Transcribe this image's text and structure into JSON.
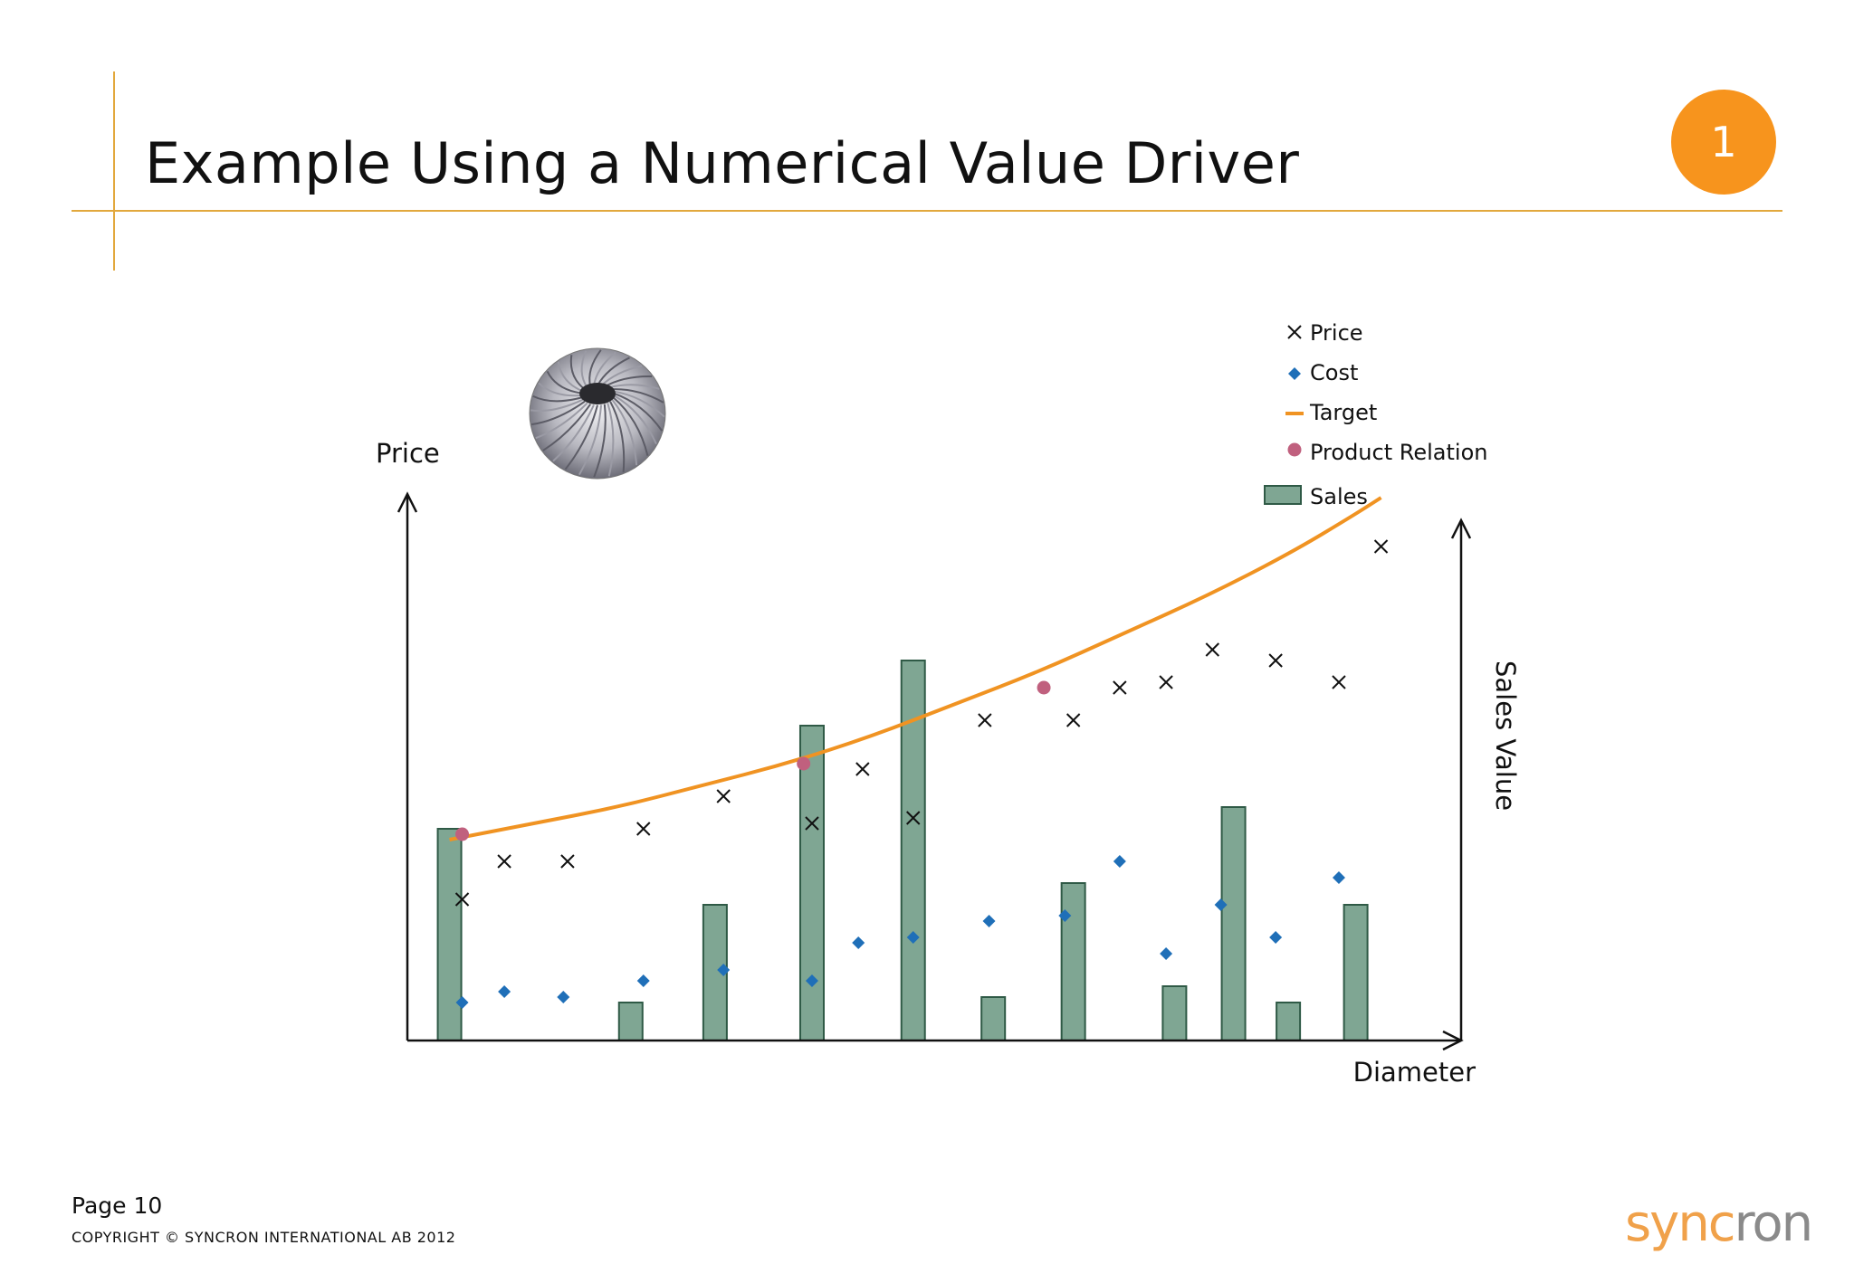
{
  "slide": {
    "title": "Example Using a Numerical Value Driver",
    "badge": "1",
    "page": "Page 10",
    "copyright": "COPYRIGHT © SYNCRON INTERNATIONAL AB 2012",
    "logo_text_a": "sync",
    "logo_text_b": "ron",
    "accent_color": "#f7941d",
    "rule_color": "#e2a83d",
    "illustration": "turbine-impeller-image"
  },
  "chart_data": {
    "type": "combo",
    "xlabel": "Diameter",
    "ylabel": "Price",
    "y2label": "Sales Value",
    "xlim": [
      0,
      25
    ],
    "ylim": [
      0,
      100
    ],
    "y2lim": [
      0,
      100
    ],
    "legend": {
      "position": "top-right",
      "entries": [
        {
          "label": "Price",
          "marker": "x",
          "color": "#111111"
        },
        {
          "label": "Cost",
          "marker": "diamond",
          "color": "#1f6fb8"
        },
        {
          "label": "Target",
          "marker": "line",
          "color": "#f09322"
        },
        {
          "label": "Product Relation",
          "marker": "circle",
          "color": "#c0607e"
        },
        {
          "label": "Sales",
          "marker": "bar",
          "color": "#7fa693"
        }
      ]
    },
    "series": [
      {
        "name": "Sales",
        "kind": "bar",
        "color": "#7fa693",
        "x": [
          1.0,
          5.3,
          7.3,
          9.6,
          12.0,
          13.9,
          15.8,
          18.2,
          19.6,
          20.9,
          22.5
        ],
        "values": [
          39,
          7,
          25,
          58,
          70,
          8,
          29,
          10,
          43,
          7,
          25
        ]
      },
      {
        "name": "Price",
        "kind": "scatter",
        "marker": "x",
        "color": "#111111",
        "x": [
          1.3,
          2.3,
          3.8,
          5.6,
          7.5,
          9.6,
          10.8,
          12.0,
          13.7,
          15.8,
          16.9,
          18.0,
          19.1,
          20.6,
          22.1,
          23.1
        ],
        "values": [
          26,
          33,
          33,
          39,
          45,
          40,
          50,
          41,
          59,
          59,
          65,
          66,
          72,
          70,
          66,
          91
        ]
      },
      {
        "name": "Cost",
        "kind": "scatter",
        "marker": "diamond",
        "color": "#1f6fb8",
        "x": [
          1.3,
          2.3,
          3.7,
          5.6,
          7.5,
          9.6,
          10.7,
          12.0,
          13.8,
          15.6,
          16.9,
          18.0,
          19.3,
          20.6,
          22.1
        ],
        "values": [
          7,
          9,
          8,
          11,
          13,
          11,
          18,
          19,
          22,
          23,
          33,
          16,
          25,
          19,
          30
        ]
      },
      {
        "name": "Target",
        "kind": "line",
        "color": "#f09322",
        "x": [
          1.0,
          3.0,
          5.0,
          7.0,
          9.0,
          11.0,
          13.0,
          15.0,
          17.0,
          19.0,
          21.0,
          22.5,
          23.1
        ],
        "values": [
          37,
          40,
          43,
          47,
          51,
          56,
          62,
          68,
          75,
          82,
          90,
          97,
          100
        ]
      },
      {
        "name": "Product Relation",
        "kind": "scatter",
        "marker": "circle",
        "color": "#c0607e",
        "x": [
          1.3,
          9.4,
          15.1
        ],
        "values": [
          38,
          51,
          65
        ]
      }
    ]
  }
}
